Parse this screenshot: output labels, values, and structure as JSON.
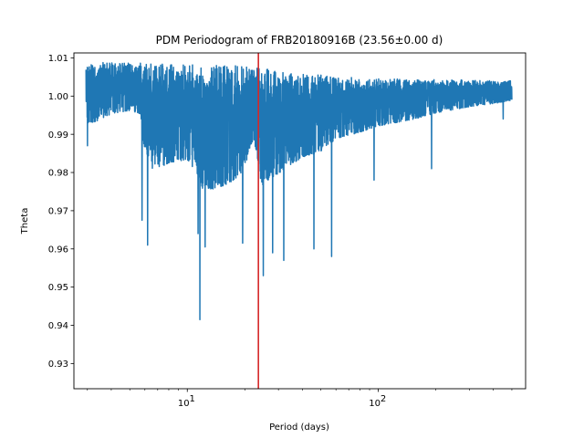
{
  "chart_data": {
    "type": "line",
    "title": "PDM Periodogram of FRB20180916B (23.56±0.00 d)",
    "xlabel": "Period (days)",
    "ylabel": "Theta",
    "xscale": "log",
    "xlim": [
      2.55,
      590
    ],
    "ylim": [
      0.9234,
      1.0113
    ],
    "x_major_ticks": [
      10,
      100
    ],
    "x_major_tick_labels": [
      "10^1",
      "10^2"
    ],
    "y_ticks": [
      0.93,
      0.94,
      0.95,
      0.96,
      0.97,
      0.98,
      0.99,
      1.0,
      1.01
    ],
    "y_tick_labels": [
      "0.93",
      "0.94",
      "0.95",
      "0.96",
      "0.97",
      "0.98",
      "0.99",
      "1.00",
      "1.01"
    ],
    "grid": false,
    "line_color": "#1f77b4",
    "marker_line": {
      "x": 23.56,
      "color": "#d62728"
    },
    "envelope": {
      "x": [
        2.95,
        3.0,
        3.5,
        4.0,
        5.0,
        5.7,
        5.8,
        6.5,
        8.0,
        10.0,
        11.5,
        12.0,
        14.0,
        17.0,
        20.0,
        22.0,
        23.0,
        24.5,
        25.0,
        30.0,
        35.0,
        40.0,
        50.0,
        60.0,
        80.0,
        100.0,
        150.0,
        200.0,
        300.0,
        400.0,
        500.0
      ],
      "upper": [
        1.0088,
        1.0088,
        1.0088,
        1.0088,
        1.0087,
        1.0087,
        1.0085,
        1.0085,
        1.0083,
        1.0083,
        1.0082,
        1.0082,
        1.0081,
        1.008,
        1.0078,
        1.0076,
        1.0074,
        1.0072,
        1.0072,
        1.0065,
        1.006,
        1.0058,
        1.0055,
        1.005,
        1.0048,
        1.0046,
        1.0044,
        1.0043,
        1.0042,
        1.004,
        1.004
      ],
      "typical_low": [
        0.991,
        0.99,
        0.991,
        0.993,
        0.994,
        0.993,
        0.985,
        0.975,
        0.978,
        0.979,
        0.974,
        0.97,
        0.97,
        0.972,
        0.976,
        0.985,
        0.982,
        0.97,
        0.972,
        0.975,
        0.978,
        0.98,
        0.982,
        0.986,
        0.988,
        0.99,
        0.992,
        0.994,
        0.996,
        0.997,
        0.998
      ],
      "minimum_dips": [
        {
          "x": 3.0,
          "y": 0.987
        },
        {
          "x": 5.8,
          "y": 0.9675
        },
        {
          "x": 6.2,
          "y": 0.961
        },
        {
          "x": 11.4,
          "y": 0.964
        },
        {
          "x": 11.65,
          "y": 0.9415
        },
        {
          "x": 12.4,
          "y": 0.9605
        },
        {
          "x": 19.5,
          "y": 0.9615
        },
        {
          "x": 25.0,
          "y": 0.953
        },
        {
          "x": 28.0,
          "y": 0.959
        },
        {
          "x": 32.0,
          "y": 0.957
        },
        {
          "x": 46.0,
          "y": 0.96
        },
        {
          "x": 57.0,
          "y": 0.958
        },
        {
          "x": 95.0,
          "y": 0.978
        },
        {
          "x": 190.0,
          "y": 0.981
        },
        {
          "x": 450.0,
          "y": 0.994
        }
      ]
    }
  }
}
